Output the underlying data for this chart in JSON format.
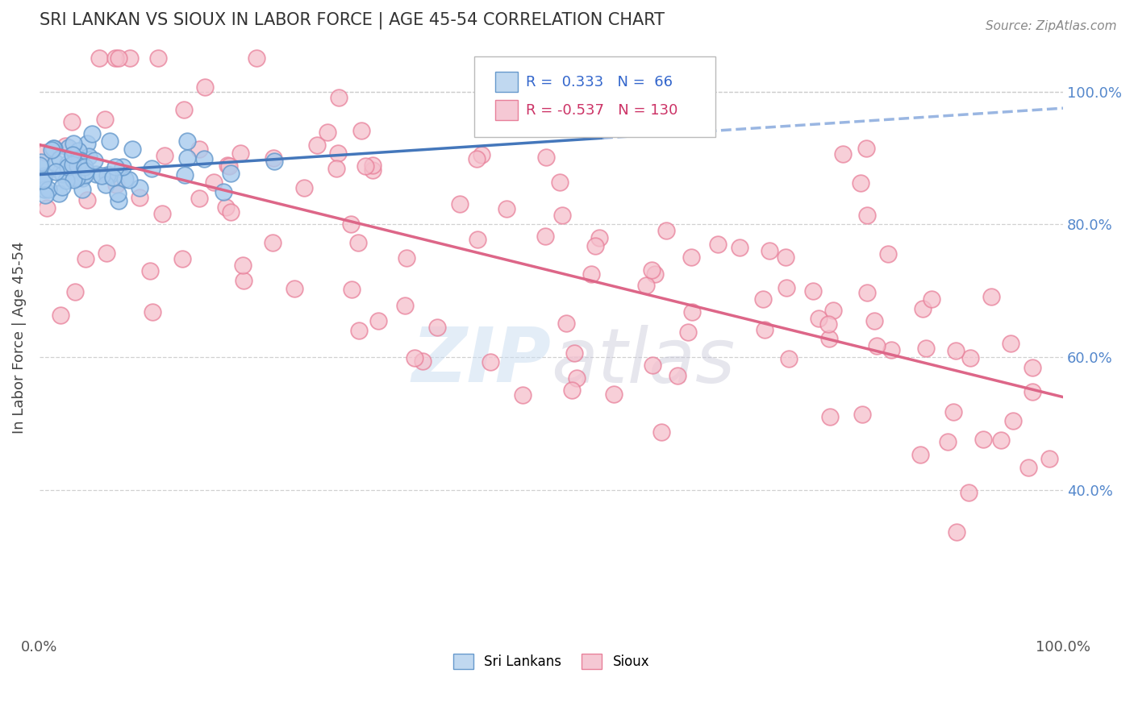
{
  "title": "SRI LANKAN VS SIOUX IN LABOR FORCE | AGE 45-54 CORRELATION CHART",
  "source_text": "Source: ZipAtlas.com",
  "ylabel": "In Labor Force | Age 45-54",
  "xlim": [
    0.0,
    1.0
  ],
  "ylim": [
    0.18,
    1.08
  ],
  "yticks": [
    0.4,
    0.6,
    0.8,
    1.0
  ],
  "ytick_labels": [
    "40.0%",
    "60.0%",
    "80.0%",
    "100.0%"
  ],
  "xticks": [
    0.0,
    1.0
  ],
  "xtick_labels": [
    "0.0%",
    "100.0%"
  ],
  "sri_lankan_color": "#A8CBEE",
  "sioux_color": "#F5BFCC",
  "sri_lankan_edge": "#6699CC",
  "sioux_edge": "#E8809A",
  "legend_box_color_sri": "#C0D8F0",
  "legend_box_color_sioux": "#F5C8D4",
  "R_sri": 0.333,
  "N_sri": 66,
  "R_sioux": -0.537,
  "N_sioux": 130,
  "trend_sri_solid_color": "#4477BB",
  "trend_sri_dashed_color": "#88AADD",
  "trend_sioux_color": "#DD6688",
  "background_color": "#FFFFFF",
  "grid_color": "#CCCCCC",
  "title_color": "#333333",
  "watermark_color": "#C8DCF0",
  "watermark_alpha": 0.5
}
